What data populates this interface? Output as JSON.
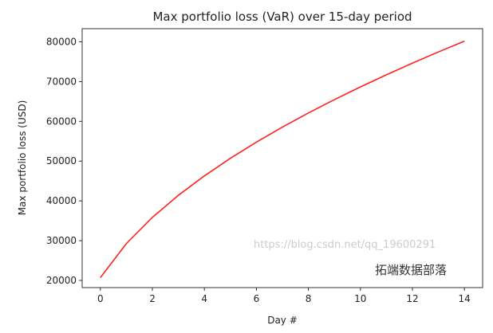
{
  "chart_data": {
    "type": "line",
    "title": "Max portfolio loss (VaR) over 15-day period",
    "xlabel": "Day #",
    "ylabel": "Max portfolio loss (USD)",
    "x": [
      0,
      1,
      2,
      3,
      4,
      5,
      6,
      7,
      8,
      9,
      10,
      11,
      12,
      13,
      14
    ],
    "series": [
      {
        "values": [
          20700,
          29274,
          35853,
          41400,
          46287,
          50704,
          54767,
          58548,
          62100,
          65459,
          68655,
          71707,
          74636,
          77454,
          80171
        ],
        "color": "#ff2020"
      }
    ],
    "xlim": [
      -0.7,
      14.7
    ],
    "ylim": [
      18200,
      83300
    ],
    "xticks": [
      0,
      2,
      4,
      6,
      8,
      10,
      12,
      14
    ],
    "yticks": [
      20000,
      30000,
      40000,
      50000,
      60000,
      70000,
      80000
    ],
    "grid": false
  },
  "watermark": {
    "text": "https://blog.csdn.net/qq_19600291",
    "brand": "拓端数据部落"
  }
}
